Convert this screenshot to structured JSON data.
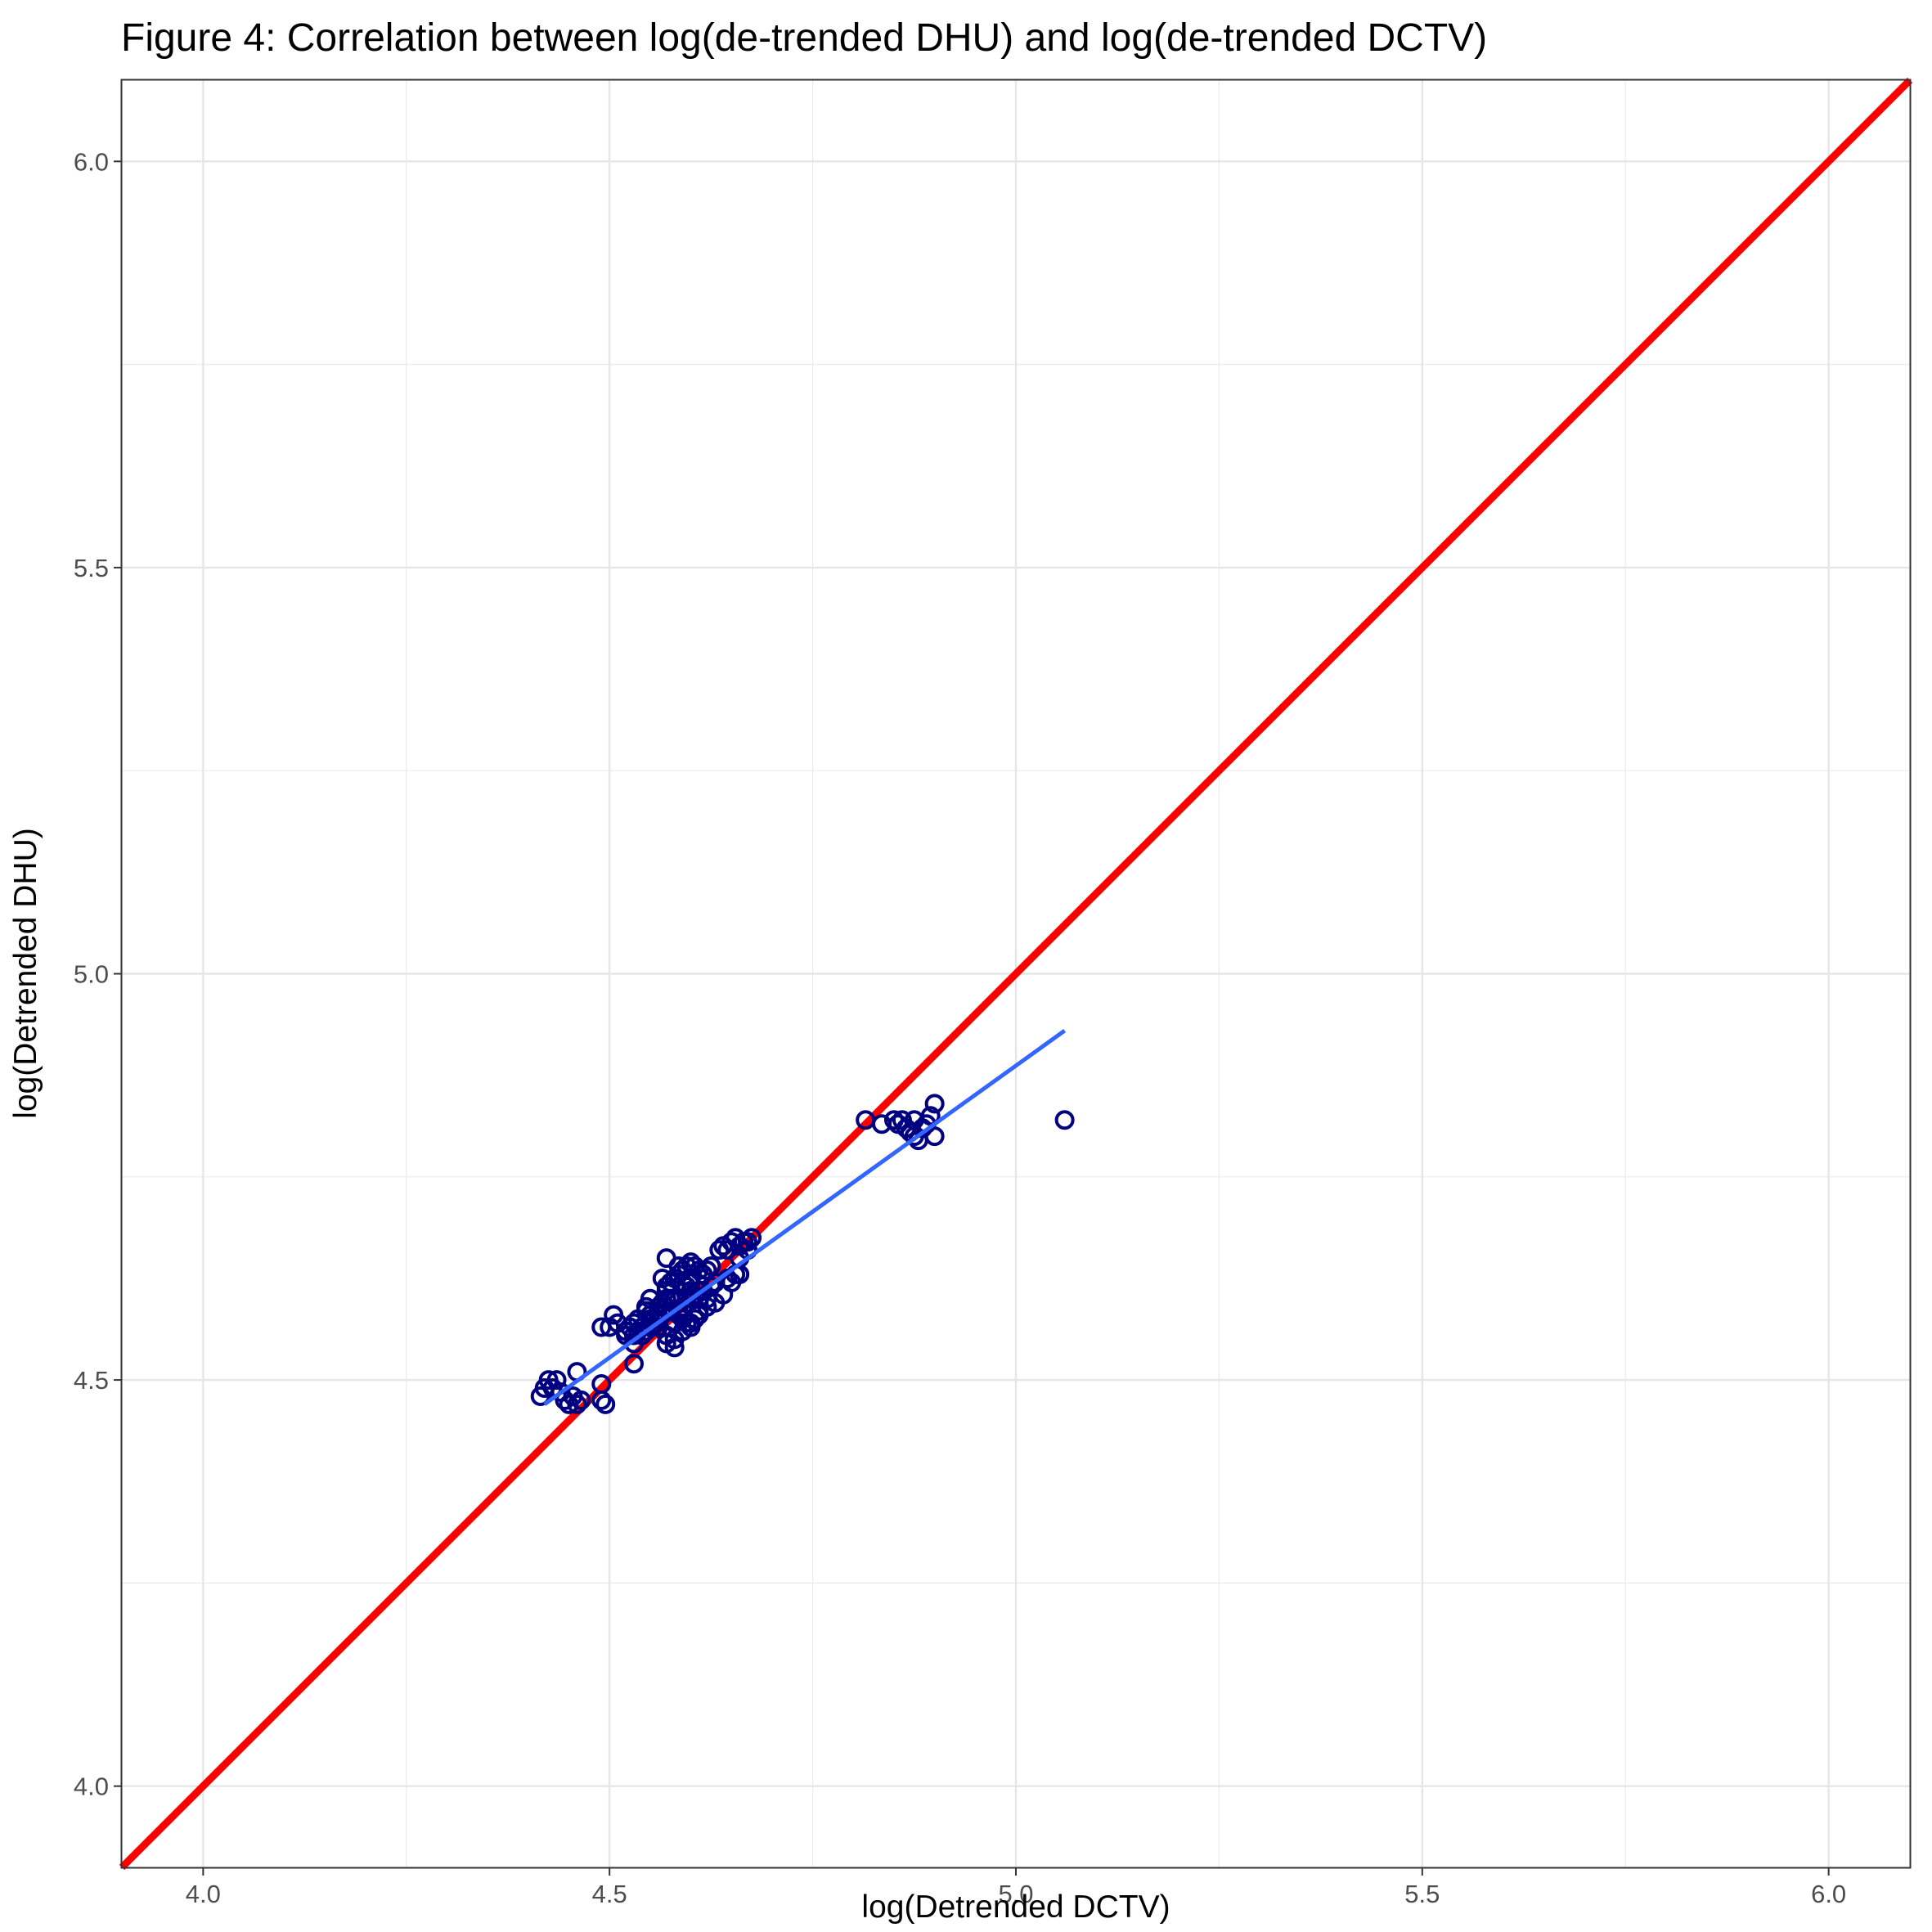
{
  "chart_data": {
    "type": "scatter",
    "title": "Figure 4: Correlation between log(de-trended DHU) and log(de-trended DCTV)",
    "xlabel": "log(Detrended DCTV)",
    "ylabel": "log(Detrended DHU)",
    "xlim": [
      3.9,
      6.1
    ],
    "ylim": [
      3.9,
      6.1
    ],
    "x_ticks": [
      4.0,
      4.5,
      5.0,
      5.5,
      6.0
    ],
    "x_tick_labels": [
      "4.0",
      "4.5",
      "5.0",
      "5.5",
      "6.0"
    ],
    "y_ticks": [
      4.0,
      4.5,
      5.0,
      5.5,
      6.0
    ],
    "y_tick_labels": [
      "4.0",
      "4.5",
      "5.0",
      "5.5",
      "6.0"
    ],
    "x_minor_ticks": [
      4.25,
      4.75,
      5.25,
      5.75
    ],
    "y_minor_ticks": [
      4.25,
      4.75,
      5.25,
      5.75
    ],
    "grid": true,
    "legend": "none",
    "series": [
      {
        "name": "observations",
        "kind": "points",
        "color": "#000080",
        "x": [
          4.415,
          4.42,
          4.43,
          4.425,
          4.435,
          4.44,
          4.445,
          4.45,
          4.455,
          4.46,
          4.465,
          4.46,
          4.49,
          4.49,
          4.495,
          4.49,
          4.5,
          4.505,
          4.51,
          4.52,
          4.525,
          4.53,
          4.535,
          4.53,
          4.54,
          4.545,
          4.55,
          4.55,
          4.555,
          4.56,
          4.56,
          4.565,
          4.57,
          4.57,
          4.575,
          4.58,
          4.58,
          4.585,
          4.59,
          4.59,
          4.595,
          4.6,
          4.6,
          4.605,
          4.61,
          4.615,
          4.62,
          4.625,
          4.63,
          4.635,
          4.64,
          4.645,
          4.65,
          4.655,
          4.66,
          4.665,
          4.67,
          4.675,
          4.57,
          4.575,
          4.58,
          4.585,
          4.59,
          4.595,
          4.6,
          4.56,
          4.565,
          4.55,
          4.545,
          4.54,
          4.535,
          4.53,
          4.57,
          4.58,
          4.59,
          4.6,
          4.61,
          4.62,
          4.6,
          4.61,
          4.63,
          4.645,
          4.66,
          4.57,
          4.585,
          4.595,
          4.605,
          4.58,
          4.59,
          4.56,
          4.57,
          4.55,
          4.6,
          4.62,
          4.585,
          4.575,
          4.57,
          4.565,
          4.6,
          4.605,
          4.61,
          4.615,
          4.625,
          4.63,
          4.64,
          4.65,
          4.655,
          4.66,
          4.67,
          4.545,
          4.555,
          4.52,
          4.53,
          4.58,
          4.595,
          4.61,
          4.815,
          4.835,
          4.85,
          4.855,
          4.86,
          4.865,
          4.87,
          4.875,
          4.88,
          4.885,
          4.89,
          4.895,
          4.9,
          4.9,
          4.875,
          4.885,
          5.06
        ],
        "y": [
          4.48,
          4.49,
          4.49,
          4.5,
          4.5,
          4.485,
          4.475,
          4.47,
          4.48,
          4.51,
          4.475,
          4.47,
          4.475,
          4.495,
          4.47,
          4.565,
          4.565,
          4.58,
          4.57,
          4.56,
          4.565,
          4.57,
          4.575,
          4.52,
          4.555,
          4.56,
          4.565,
          4.58,
          4.575,
          4.58,
          4.59,
          4.595,
          4.6,
          4.61,
          4.62,
          4.6,
          4.625,
          4.63,
          4.62,
          4.635,
          4.64,
          4.625,
          4.645,
          4.64,
          4.635,
          4.63,
          4.635,
          4.64,
          4.62,
          4.66,
          4.665,
          4.66,
          4.67,
          4.675,
          4.665,
          4.67,
          4.67,
          4.675,
          4.555,
          4.565,
          4.57,
          4.585,
          4.59,
          4.6,
          4.61,
          4.575,
          4.58,
          4.6,
          4.59,
          4.565,
          4.56,
          4.555,
          4.545,
          4.55,
          4.56,
          4.57,
          4.585,
          4.59,
          4.6,
          4.61,
          4.62,
          4.625,
          4.63,
          4.65,
          4.64,
          4.615,
          4.605,
          4.57,
          4.575,
          4.565,
          4.59,
          4.575,
          4.62,
          4.6,
          4.58,
          4.6,
          4.615,
          4.625,
          4.565,
          4.575,
          4.6,
          4.61,
          4.615,
          4.595,
          4.605,
          4.62,
          4.63,
          4.65,
          4.66,
          4.585,
          4.575,
          4.555,
          4.545,
          4.54,
          4.57,
          4.58,
          4.82,
          4.815,
          4.82,
          4.815,
          4.82,
          4.81,
          4.805,
          4.8,
          4.795,
          4.81,
          4.815,
          4.825,
          4.84,
          4.8,
          4.82,
          4.81,
          4.82
        ]
      },
      {
        "name": "linear fit",
        "kind": "line",
        "color": "#3366ff",
        "x": [
          4.42,
          5.06
        ],
        "y": [
          4.47,
          4.93
        ]
      },
      {
        "name": "45-degree line",
        "kind": "line",
        "color": "#ff0000",
        "x": [
          3.9,
          6.1
        ],
        "y": [
          3.9,
          6.1
        ]
      }
    ]
  }
}
